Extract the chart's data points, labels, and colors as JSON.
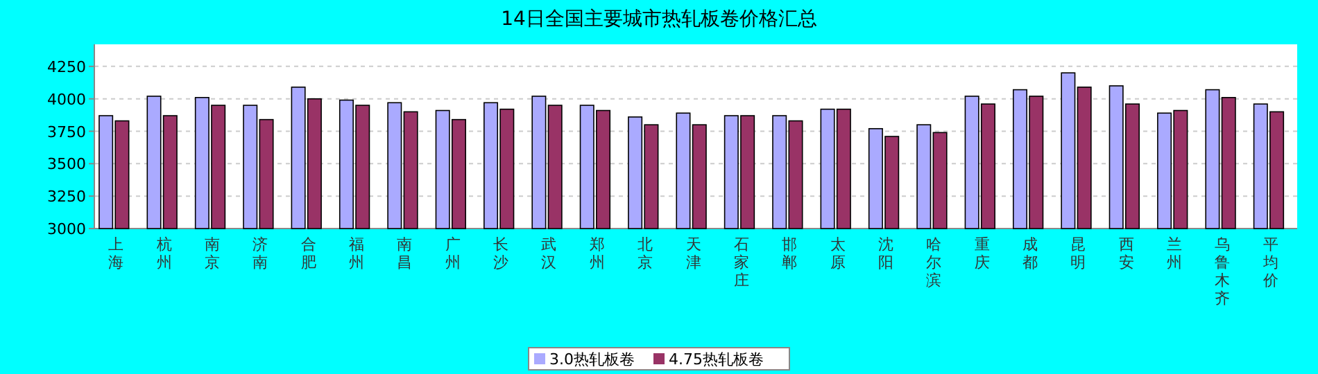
{
  "chart_data": {
    "type": "bar",
    "title": "14日全国主要城市热轧板卷价格汇总",
    "categories": [
      "上海",
      "杭州",
      "南京",
      "济南",
      "合肥",
      "福州",
      "南昌",
      "广州",
      "长沙",
      "武汉",
      "郑州",
      "北京",
      "天津",
      "石家庄",
      "邯郸",
      "太原",
      "沈阳",
      "哈尔滨",
      "重庆",
      "成都",
      "昆明",
      "西安",
      "兰州",
      "乌鲁木齐",
      "平均价"
    ],
    "series": [
      {
        "name": "3.0热轧板卷",
        "color": "#aaaaff",
        "values": [
          3870,
          4020,
          4010,
          3950,
          4090,
          3990,
          3970,
          3910,
          3970,
          4020,
          3950,
          3860,
          3890,
          3870,
          3870,
          3920,
          3770,
          3800,
          4020,
          4070,
          4200,
          4100,
          3890,
          4070,
          3960
        ]
      },
      {
        "name": "4.75热轧板卷",
        "color": "#993366",
        "values": [
          3830,
          3870,
          3950,
          3840,
          4000,
          3950,
          3900,
          3840,
          3920,
          3950,
          3910,
          3800,
          3800,
          3870,
          3830,
          3920,
          3710,
          3740,
          3960,
          4020,
          4090,
          3960,
          3910,
          4010,
          3900
        ]
      }
    ],
    "ylim": [
      3000,
      4420
    ],
    "yticks": [
      3000,
      3250,
      3500,
      3750,
      4000,
      4250
    ],
    "grid": "y",
    "legend": "bottom"
  }
}
